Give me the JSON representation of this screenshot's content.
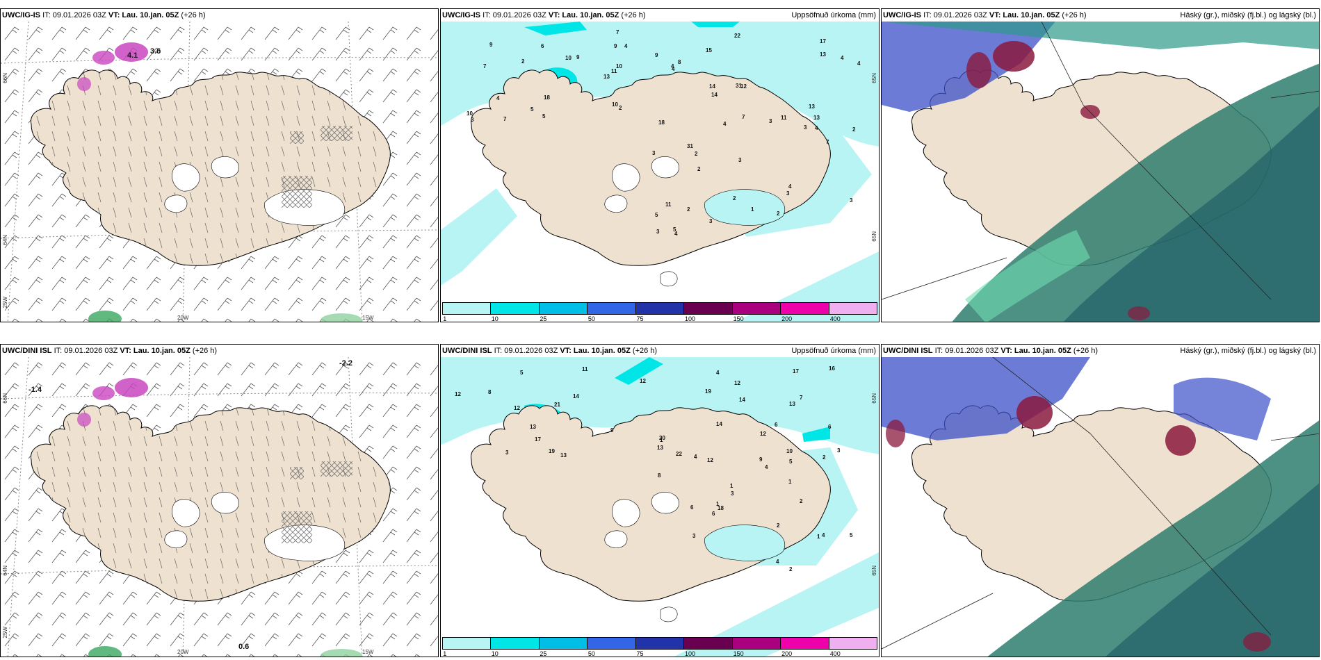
{
  "panels": {
    "p1": {
      "model": "UWC/IG-IS",
      "it": "IT: 09.01.2026 03Z",
      "vt_label": "VT:",
      "vt": "Lau. 10.jan. 05Z",
      "lead": "(+26 h)",
      "right": ""
    },
    "p2": {
      "model": "UWC/IG-IS",
      "it": "IT: 09.01.2026 03Z",
      "vt_label": "VT:",
      "vt": "Lau. 10.jan. 05Z",
      "lead": "(+26 h)",
      "right": "Uppsöfnuð úrkoma (mm)"
    },
    "p3": {
      "model": "UWC/IG-IS",
      "it": "IT: 09.01.2026 03Z",
      "vt_label": "VT:",
      "vt": "Lau. 10.jan. 05Z",
      "lead": "(+26 h)",
      "right": "Háský (gr.), miðský (fj.bl.) og lágský (bl.)"
    },
    "p4": {
      "model": "UWC/DINI ISL",
      "it": "IT: 09.01.2026 03Z",
      "vt_label": "VT:",
      "vt": "Lau. 10.jan. 05Z",
      "lead": "(+26 h)",
      "right": ""
    },
    "p5": {
      "model": "UWC/DINI ISL",
      "it": "IT: 09.01.2026 03Z",
      "vt_label": "VT:",
      "vt": "Lau. 10.jan. 05Z",
      "lead": "(+26 h)",
      "right": "Uppsöfnuð úrkoma (mm)"
    },
    "p6": {
      "model": "UWC/DINI ISL",
      "it": "IT: 09.01.2026 03Z",
      "vt_label": "VT:",
      "vt": "Lau. 10.jan. 05Z",
      "lead": "(+26 h)",
      "right": "Háský (gr.), miðský (fj.bl.) og lágský (bl.)"
    }
  },
  "axis": {
    "lat66": "66N",
    "lat64": "64N",
    "lat65": "65N",
    "lon25": "25W",
    "lon20": "20W",
    "lon15": "15W"
  },
  "wind_panel_labels": {
    "top_a": "4.1",
    "top_b": "3.6",
    "bot_a": "-1.4",
    "bot_b": "-2.2",
    "bot_c": "0.6"
  },
  "precip_scale": {
    "labels": [
      "1",
      "10",
      "25",
      "50",
      "75",
      "100",
      "150",
      "200",
      "400"
    ],
    "colors": [
      "#b8f4f4",
      "#00e6e6",
      "#00bfe6",
      "#3366e6",
      "#2233aa",
      "#6a0050",
      "#aa0080",
      "#ee00aa",
      "#f0b0f0"
    ]
  },
  "precip_top_numbers": [
    "13",
    "7",
    "17",
    "13",
    "15",
    "7",
    "9",
    "9",
    "4",
    "9",
    "10",
    "5",
    "4",
    "8",
    "12",
    "9",
    "7",
    "4",
    "14",
    "13",
    "11",
    "10",
    "10",
    "6",
    "22",
    "18",
    "11",
    "13",
    "31",
    "18",
    "10",
    "2",
    "14",
    "5",
    "4",
    "4",
    "3",
    "2",
    "4",
    "11",
    "7",
    "2",
    "3",
    "2",
    "2",
    "4",
    "3",
    "1",
    "4",
    "7",
    "2",
    "3",
    "31",
    "3",
    "5",
    "3",
    "4",
    "3",
    "3",
    "2",
    "3",
    "4",
    "2",
    "5"
  ],
  "precip_bot_numbers": [
    "6",
    "9",
    "1",
    "3",
    "20",
    "14",
    "11",
    "12",
    "12",
    "13",
    "14",
    "17",
    "12",
    "14",
    "13",
    "5",
    "17",
    "19",
    "4",
    "12",
    "8",
    "6",
    "10",
    "12",
    "16",
    "19",
    "12",
    "9",
    "13",
    "21",
    "13",
    "7",
    "3",
    "4",
    "5",
    "6",
    "8",
    "2",
    "18",
    "22",
    "1",
    "1",
    "3",
    "4",
    "4",
    "2",
    "3",
    "1",
    "5",
    "2",
    "6",
    "2",
    "1",
    "4"
  ],
  "colors": {
    "land": "#efe1d0",
    "precip_light": "#b8f4f4",
    "precip_mid": "#00e6e6",
    "cloud_high": "#2e7d6e",
    "cloud_mid": "#3b4fc7",
    "cloud_low": "#8b1a3e"
  }
}
